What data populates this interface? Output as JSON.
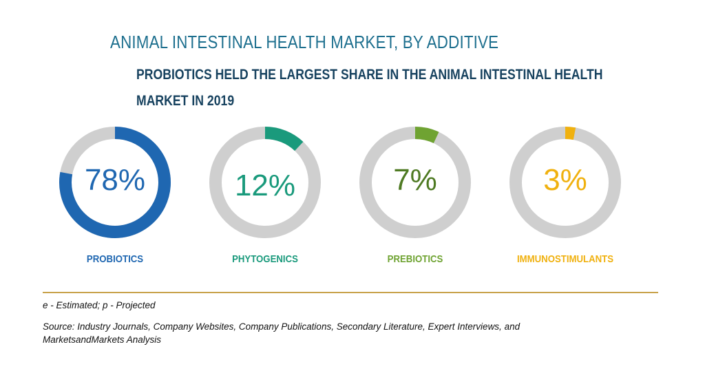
{
  "chart_data": {
    "type": "donut",
    "title": "ANIMAL INTESTINAL HEALTH MARKET, BY ADDITIVE",
    "subtitle": "PROBIOTICS HELD THE LARGEST SHARE IN THE ANIMAL INTESTINAL HEALTH MARKET IN 2019",
    "unit": "%",
    "items": [
      {
        "category": "PROBIOTICS",
        "value": 78,
        "label": "78%",
        "color": "#1f67b1"
      },
      {
        "category": "PHYTOGENICS",
        "value": 12,
        "label": "12%",
        "color": "#1a9a7c"
      },
      {
        "category": "PREBIOTICS",
        "value": 7,
        "label": "7%",
        "color": "#6fa332"
      },
      {
        "category": "IMMUNOSTIMULANTS",
        "value": 3,
        "label": "3%",
        "color": "#f0b10f"
      }
    ],
    "track_color": "#cfcfcf",
    "pct_colors": [
      "#1f67b1",
      "#1a9a7c",
      "#4e7a22",
      "#f0b10f"
    ]
  },
  "footer": {
    "note": "e - Estimated; p - Projected",
    "source_line1": "Source: Industry Journals, Company Websites, Company Publications, Secondary Literature, Expert Interviews, and",
    "source_line2": "MarketsandMarkets Analysis"
  }
}
